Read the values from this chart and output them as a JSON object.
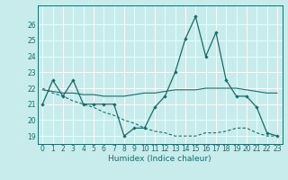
{
  "title": "",
  "xlabel": "Humidex (Indice chaleur)",
  "background_color": "#c8ecec",
  "grid_color": "#ffffff",
  "line_color": "#1a6b6b",
  "x": [
    0,
    1,
    2,
    3,
    4,
    5,
    6,
    7,
    8,
    9,
    10,
    11,
    12,
    13,
    14,
    15,
    16,
    17,
    18,
    19,
    20,
    21,
    22,
    23
  ],
  "y_main": [
    21,
    22.5,
    21.5,
    22.5,
    21.0,
    21.0,
    21.0,
    21.0,
    19.0,
    19.5,
    19.5,
    20.8,
    21.5,
    23.0,
    25.1,
    26.5,
    24.0,
    25.5,
    22.5,
    21.5,
    21.5,
    20.8,
    19.2,
    19.0
  ],
  "y_dashed": [
    22.0,
    21.7,
    21.5,
    21.2,
    21.0,
    20.8,
    20.5,
    20.3,
    20.0,
    19.8,
    19.5,
    19.3,
    19.2,
    19.0,
    19.0,
    19.0,
    19.2,
    19.2,
    19.3,
    19.5,
    19.5,
    19.2,
    19.0,
    19.0
  ],
  "y_flat": [
    21.9,
    21.8,
    21.7,
    21.7,
    21.6,
    21.6,
    21.5,
    21.5,
    21.5,
    21.6,
    21.7,
    21.7,
    21.8,
    21.9,
    21.9,
    21.9,
    22.0,
    22.0,
    22.0,
    22.0,
    21.9,
    21.8,
    21.7,
    21.7
  ],
  "ylim": [
    18.5,
    27.2
  ],
  "xlim": [
    -0.5,
    23.5
  ],
  "yticks": [
    19,
    20,
    21,
    22,
    23,
    24,
    25,
    26
  ],
  "xticks": [
    0,
    1,
    2,
    3,
    4,
    5,
    6,
    7,
    8,
    9,
    10,
    11,
    12,
    13,
    14,
    15,
    16,
    17,
    18,
    19,
    20,
    21,
    22,
    23
  ],
  "xlabel_fontsize": 6.5,
  "tick_fontsize": 5.5
}
